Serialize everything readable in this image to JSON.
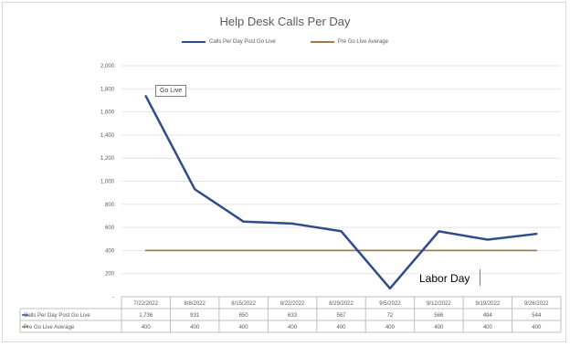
{
  "chart_data": {
    "type": "line",
    "title": "Help Desk Calls Per Day",
    "legend_position": "top",
    "grid": true,
    "ylim": [
      0,
      2000
    ],
    "y_ticks": [
      "-",
      "200",
      "400",
      "600",
      "800",
      "1,000",
      "1,200",
      "1,400",
      "1,600",
      "1,800",
      "2,000"
    ],
    "categories": [
      "7/22/2022",
      "8/8/2022",
      "8/15/2022",
      "8/22/2022",
      "8/29/2022",
      "9/5/2022",
      "9/12/2022",
      "9/19/2022",
      "9/26/2022"
    ],
    "series": [
      {
        "name": "Calls Per Day Post Go Live",
        "color": "#2f4b8a",
        "values": [
          1736,
          931,
          650,
          633,
          567,
          72,
          566,
          494,
          544
        ],
        "table_values": [
          "1,736",
          "931",
          "650",
          "633",
          "567",
          "72",
          "566",
          "494",
          "544"
        ]
      },
      {
        "name": "Pre Go Live Average",
        "color": "#a07b4f",
        "values": [
          400,
          400,
          400,
          400,
          400,
          400,
          400,
          400,
          400
        ],
        "table_values": [
          "400",
          "400",
          "400",
          "400",
          "400",
          "400",
          "400",
          "400",
          "400"
        ]
      }
    ],
    "annotations": {
      "go_live": "Go Live",
      "labor_day": "Labor Day"
    }
  }
}
